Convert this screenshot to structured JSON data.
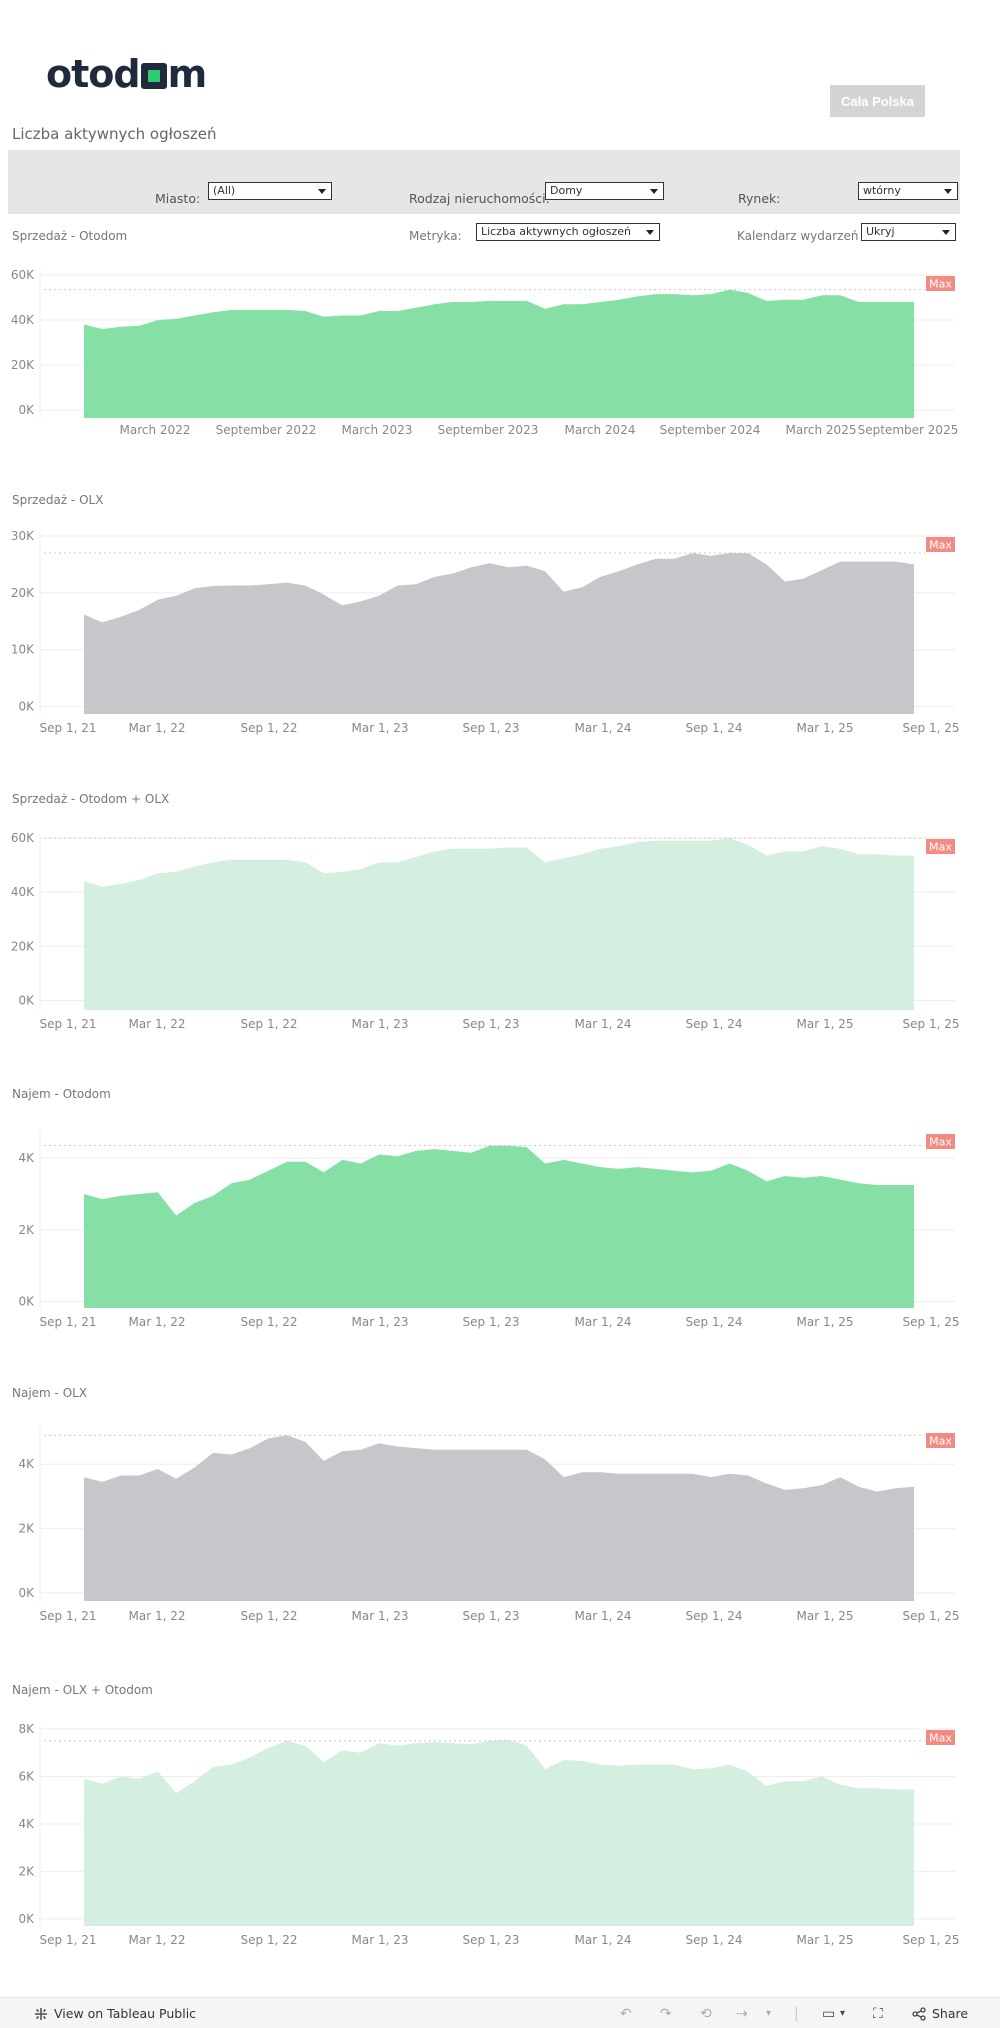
{
  "header": {
    "logo_pre": "otod",
    "logo_post": "m",
    "region_button": "Cała Polska",
    "page_title": "Liczba aktywnych ogłoszeń"
  },
  "filters": {
    "miasto_label": "Miasto:",
    "miasto_value": "(All)",
    "rodzaj_label": "Rodzaj nieruchomości:",
    "rodzaj_value": "Domy",
    "rynek_label": "Rynek:",
    "rynek_value": "wtórny",
    "metryka_label": "Metryka:",
    "metryka_value": "Liczba aktywnych ogłoszeń",
    "kalendarz_label": "Kalendarz wydarzeń",
    "kalendarz_value": "Ukryj"
  },
  "colors": {
    "green": "#86e0a6",
    "gray": "#c6c6cb",
    "light_green": "#d4eedf",
    "max_badge": "#f28b82"
  },
  "chart_data": [
    {
      "type": "area",
      "title": "Sprzedaż - Otodom",
      "color": "#86e0a6",
      "x_tick_labels": [
        "March 2022",
        "September 2022",
        "March 2023",
        "September 2023",
        "March 2024",
        "September 2024",
        "March 2025",
        "September 2025"
      ],
      "y_tick_labels": [
        "0K",
        "20K",
        "40K",
        "60K"
      ],
      "ylim": [
        -3500,
        60000
      ],
      "max_label": "Max",
      "max_value": 53500,
      "values": [
        38000,
        36000,
        37000,
        37500,
        40000,
        40500,
        42000,
        43500,
        44500,
        44500,
        44500,
        44500,
        44000,
        41500,
        42000,
        42000,
        44000,
        44000,
        45500,
        47000,
        48000,
        48000,
        48500,
        48500,
        48500,
        45000,
        47000,
        47000,
        48000,
        49000,
        50500,
        51500,
        51500,
        51000,
        51500,
        53500,
        52000,
        48500,
        49000,
        49000,
        51000,
        51000,
        48000,
        48000,
        48000,
        48000
      ]
    },
    {
      "type": "area",
      "title": "Sprzedaż - OLX",
      "color": "#c6c6cb",
      "x_tick_labels": [
        "Sep 1, 21",
        "Mar 1, 22",
        "Sep 1, 22",
        "Mar 1, 23",
        "Sep 1, 23",
        "Mar 1, 24",
        "Sep 1, 24",
        "Mar 1, 25",
        "Sep 1, 25"
      ],
      "y_tick_labels": [
        "0K",
        "10K",
        "20K",
        "30K"
      ],
      "ylim": [
        -1300,
        30000
      ],
      "max_label": "Max",
      "max_value": 27000,
      "values": [
        16200,
        14800,
        15800,
        17000,
        18800,
        19500,
        20800,
        21200,
        21300,
        21300,
        21500,
        21800,
        21300,
        19700,
        17800,
        18500,
        19500,
        21300,
        21500,
        22800,
        23400,
        24500,
        25200,
        24500,
        24800,
        23800,
        20200,
        21000,
        22800,
        23800,
        25000,
        26000,
        26000,
        27000,
        26500,
        27000,
        27000,
        25000,
        22000,
        22500,
        24000,
        25500,
        25500,
        25500,
        25500,
        25000
      ]
    },
    {
      "type": "area",
      "title": "Sprzedaż - Otodom + OLX",
      "color": "#d4eedf",
      "x_tick_labels": [
        "Sep 1, 21",
        "Mar 1, 22",
        "Sep 1, 22",
        "Mar 1, 23",
        "Sep 1, 23",
        "Mar 1, 24",
        "Sep 1, 24",
        "Mar 1, 25",
        "Sep 1, 25"
      ],
      "y_tick_labels": [
        "0K",
        "20K",
        "40K",
        "60K"
      ],
      "ylim": [
        -3500,
        60000
      ],
      "max_label": "Max",
      "max_value": 60000,
      "values": [
        44000,
        42000,
        43000,
        44500,
        47000,
        47500,
        49500,
        51000,
        52000,
        52000,
        52000,
        52000,
        51000,
        47000,
        47500,
        48500,
        51000,
        51000,
        53000,
        55000,
        56000,
        56000,
        56000,
        56500,
        56500,
        51000,
        52500,
        54000,
        56000,
        57000,
        58500,
        59000,
        59000,
        59000,
        59000,
        60000,
        57500,
        53500,
        55000,
        55000,
        57000,
        56000,
        54000,
        54000,
        53500,
        53500
      ]
    },
    {
      "type": "area",
      "title": "Najem - Otodom",
      "color": "#86e0a6",
      "x_tick_labels": [
        "Sep 1, 21",
        "Mar 1, 22",
        "Sep 1, 22",
        "Mar 1, 23",
        "Sep 1, 23",
        "Mar 1, 24",
        "Sep 1, 24",
        "Mar 1, 25",
        "Sep 1, 25"
      ],
      "y_tick_labels": [
        "0K",
        "2K",
        "4K"
      ],
      "ylim": [
        -180,
        4700
      ],
      "max_label": "Max",
      "max_value": 4350,
      "values": [
        3000,
        2850,
        2950,
        3000,
        3050,
        2400,
        2750,
        2950,
        3300,
        3400,
        3650,
        3900,
        3900,
        3600,
        3950,
        3850,
        4100,
        4050,
        4200,
        4250,
        4200,
        4150,
        4350,
        4350,
        4300,
        3850,
        3950,
        3850,
        3750,
        3700,
        3750,
        3700,
        3650,
        3600,
        3650,
        3850,
        3650,
        3350,
        3500,
        3450,
        3500,
        3400,
        3300,
        3250,
        3250,
        3250
      ]
    },
    {
      "type": "area",
      "title": "Najem - OLX",
      "color": "#c6c6cb",
      "x_tick_labels": [
        "Sep 1, 21",
        "Mar 1, 22",
        "Sep 1, 22",
        "Mar 1, 23",
        "Sep 1, 23",
        "Mar 1, 24",
        "Sep 1, 24",
        "Mar 1, 25",
        "Sep 1, 25"
      ],
      "y_tick_labels": [
        "0K",
        "2K",
        "4K"
      ],
      "ylim": [
        -250,
        5000
      ],
      "max_label": "Max",
      "max_value": 4900,
      "values": [
        3600,
        3450,
        3650,
        3650,
        3850,
        3550,
        3900,
        4350,
        4300,
        4500,
        4800,
        4900,
        4700,
        4100,
        4400,
        4450,
        4650,
        4550,
        4500,
        4450,
        4450,
        4450,
        4450,
        4450,
        4450,
        4150,
        3600,
        3750,
        3750,
        3700,
        3700,
        3700,
        3700,
        3700,
        3600,
        3700,
        3650,
        3400,
        3200,
        3250,
        3350,
        3600,
        3300,
        3150,
        3250,
        3300
      ]
    },
    {
      "type": "area",
      "title": "Najem - OLX + Otodom",
      "color": "#d4eedf",
      "x_tick_labels": [
        "Sep 1, 21",
        "Mar 1, 22",
        "Sep 1, 22",
        "Mar 1, 23",
        "Sep 1, 23",
        "Mar 1, 24",
        "Sep 1, 24",
        "Mar 1, 25",
        "Sep 1, 25"
      ],
      "y_tick_labels": [
        "0K",
        "2K",
        "4K",
        "6K",
        "8K"
      ],
      "ylim": [
        -300,
        8000
      ],
      "max_label": "Max",
      "max_value": 7500,
      "values": [
        5900,
        5700,
        6000,
        5900,
        6200,
        5300,
        5800,
        6400,
        6500,
        6800,
        7200,
        7500,
        7300,
        6600,
        7100,
        7000,
        7400,
        7300,
        7400,
        7450,
        7400,
        7350,
        7500,
        7550,
        7300,
        6300,
        6700,
        6650,
        6500,
        6450,
        6500,
        6500,
        6500,
        6300,
        6350,
        6500,
        6200,
        5600,
        5800,
        5800,
        6000,
        5650,
        5500,
        5500,
        5450,
        5450
      ]
    }
  ],
  "footer": {
    "view_on_tableau": "View on Tableau Public",
    "share": "Share"
  }
}
